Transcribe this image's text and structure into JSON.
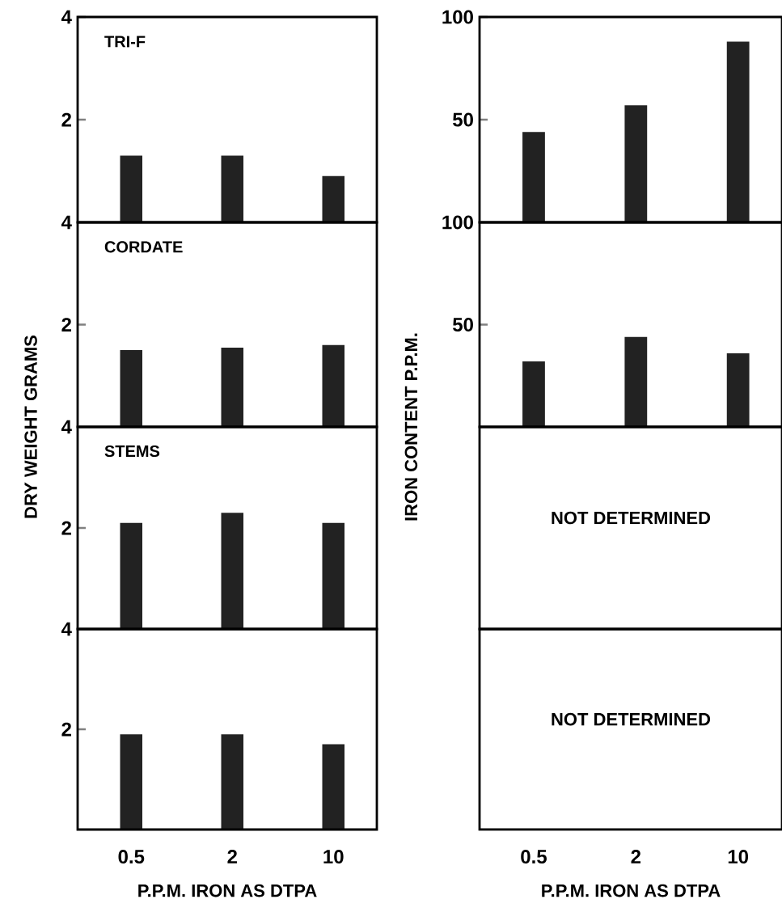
{
  "chart_data": [
    {
      "type": "bar",
      "title": "TRI-F",
      "categories": [
        "0.5",
        "2",
        "10"
      ],
      "values": [
        1.3,
        1.3,
        0.9
      ],
      "color": "#222222",
      "ylim": [
        0,
        4
      ],
      "yticks": [
        2,
        4
      ],
      "tick_labels": "y"
    },
    {
      "type": "bar",
      "categories": [
        "0.5",
        "2",
        "10"
      ],
      "values": [
        44,
        57,
        88
      ],
      "color": "#222222",
      "ylim": [
        0,
        100
      ],
      "yticks": [
        50,
        100
      ],
      "tick_labels": "y"
    },
    {
      "type": "bar",
      "title": "CORDATE",
      "ylabel": "DRY WEIGHT GRAMS",
      "categories": [
        "0.5",
        "2",
        "10"
      ],
      "values": [
        1.5,
        1.55,
        1.6
      ],
      "color": "#222222",
      "ylim": [
        0,
        4
      ],
      "yticks": [
        2,
        4
      ],
      "tick_labels": "y"
    },
    {
      "type": "bar",
      "ylabel": "IRON CONTENT P.P.M.",
      "categories": [
        "0.5",
        "2",
        "10"
      ],
      "values": [
        32,
        44,
        36
      ],
      "color": "#222222",
      "ylim": [
        0,
        100
      ],
      "yticks": [
        50,
        100
      ],
      "tick_labels": "y"
    },
    {
      "type": "bar",
      "title": "STEMS",
      "categories": [
        "0.5",
        "2",
        "10"
      ],
      "values": [
        2.1,
        2.3,
        2.1
      ],
      "color": "#222222",
      "ylim": [
        0,
        4
      ],
      "yticks": [
        2,
        4
      ],
      "tick_labels": "y"
    },
    {
      "type": "other",
      "annotations": [
        "NOT DETERMINED"
      ]
    },
    {
      "type": "bar",
      "xlabel": "P.P.M. IRON AS DTPA",
      "categories": [
        "0.5",
        "2",
        "10"
      ],
      "values": [
        1.9,
        1.9,
        1.7
      ],
      "color": "#222222",
      "ylim": [
        0,
        4
      ],
      "yticks": [
        2,
        4
      ]
    },
    {
      "type": "other",
      "xlabel": "P.P.M. IRON AS DTPA",
      "categories": [
        "0.5",
        "2",
        "10"
      ],
      "annotations": [
        "NOT DETERMINED"
      ]
    }
  ]
}
